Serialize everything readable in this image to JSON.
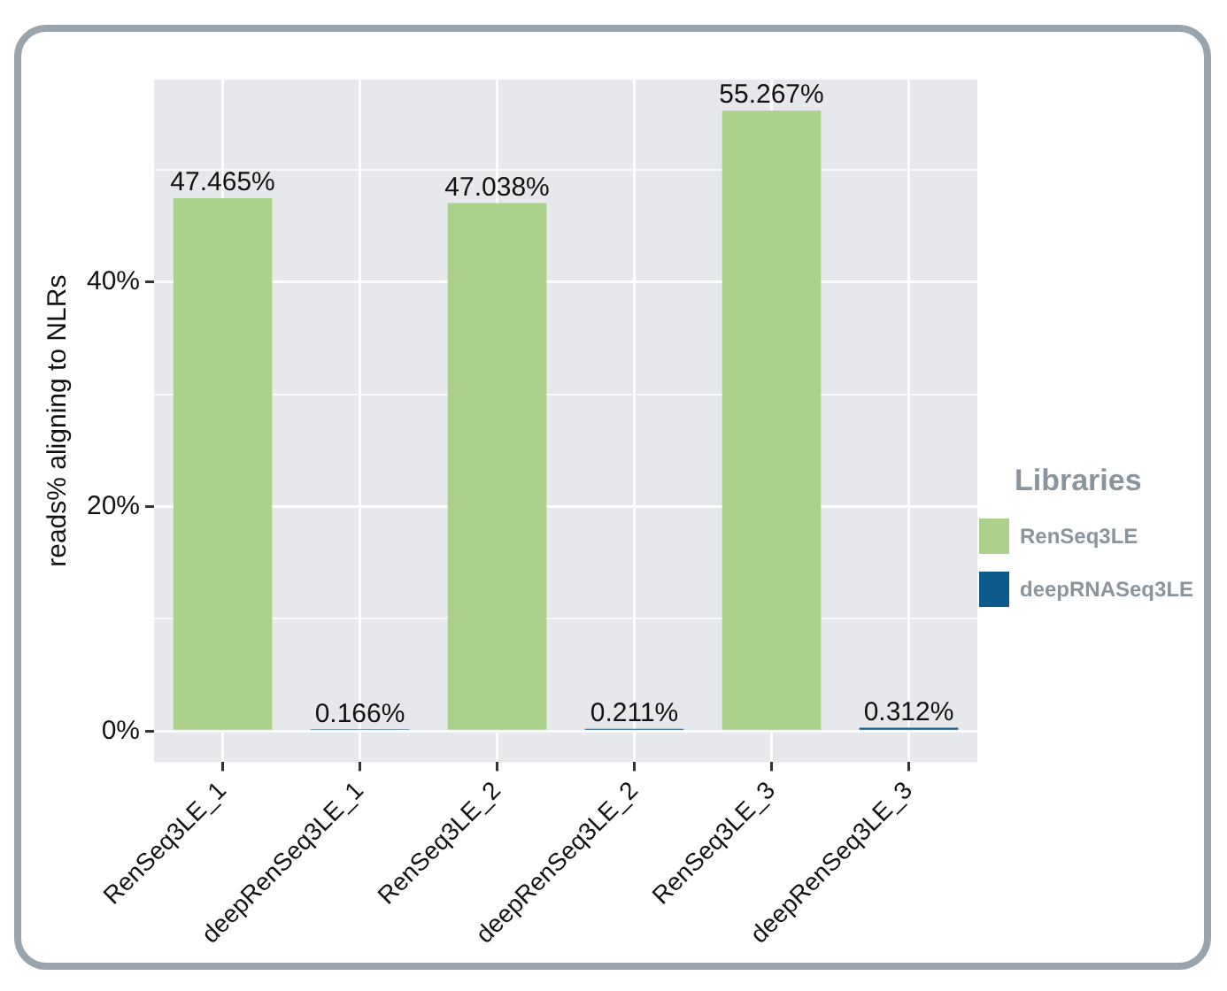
{
  "chart_data": {
    "type": "bar",
    "ylabel": "reads% aligning to NLRs",
    "legend_title": "Libraries",
    "legend": "right",
    "grid": true,
    "categories": [
      "RenSeq3LE_1",
      "deepRenSeq3LE_1",
      "RenSeq3LE_2",
      "deepRenSeq3LE_2",
      "RenSeq3LE_3",
      "deepRenSeq3LE_3"
    ],
    "series": [
      {
        "name": "RenSeq3LE",
        "color": "#acd18d",
        "values": [
          47.465,
          null,
          47.038,
          null,
          55.267,
          null
        ],
        "value_labels": [
          "47.465%",
          null,
          "47.038%",
          null,
          "55.267%",
          null
        ]
      },
      {
        "name": "deepRNASeq3LE",
        "color": "#0d5a8c",
        "values": [
          null,
          0.166,
          null,
          0.211,
          null,
          0.312
        ],
        "value_labels": [
          null,
          "0.166%",
          null,
          "0.211%",
          null,
          "0.312%"
        ]
      }
    ],
    "ylim": [
      -2.76,
      58.03
    ],
    "yticks": [
      {
        "value": 0,
        "label": "0%"
      },
      {
        "value": 10,
        "label": null
      },
      {
        "value": 20,
        "label": "20%"
      },
      {
        "value": 30,
        "label": null
      },
      {
        "value": 40,
        "label": "40%"
      },
      {
        "value": 50,
        "label": null
      }
    ]
  }
}
